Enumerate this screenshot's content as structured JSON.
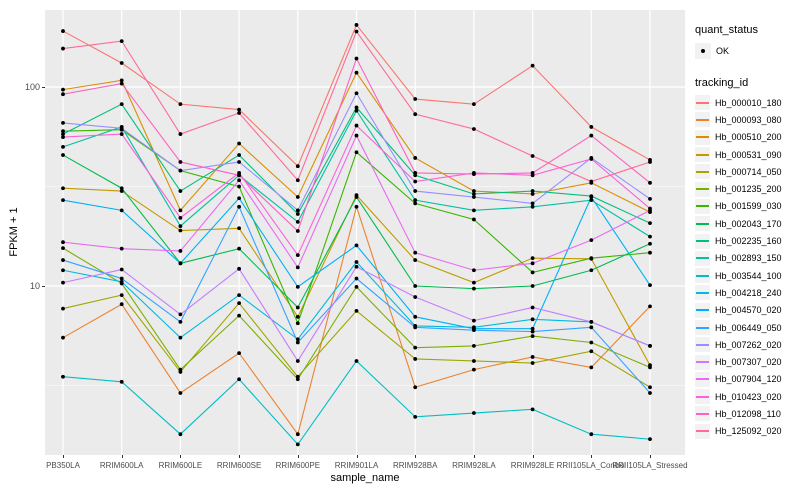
{
  "theme": {
    "panel_bg": "#EBEBEB",
    "grid_major": "#FFFFFF",
    "grid_minor": "#FFFFFF",
    "tick_text": "#4D4D4D",
    "title_text": "#000000",
    "legend_key_bg": "#F2F2F2",
    "point_color": "#000000"
  },
  "legend": {
    "quant_status_title": "quant_status",
    "quant_status_items": [
      {
        "label": "OK",
        "marker": "point"
      }
    ],
    "tracking_title": "tracking_id"
  },
  "chart_data": {
    "type": "line",
    "title": "",
    "xlabel": "sample_name",
    "ylabel": "FPKM + 1",
    "y_scale": "log10",
    "y_ticks": [
      10,
      100
    ],
    "ylim": [
      1.42,
      243
    ],
    "grid": "on",
    "legend_position": "right",
    "categories": [
      "PB350LA",
      "RRIM600LA",
      "RRIM600LE",
      "RRIM600SE",
      "RRIM600PE",
      "RRIM901LA",
      "RRIM928BA",
      "RRIM928LA",
      "RRIM928LE",
      "RRII105LA_Control",
      "RRII105LA_Stressed"
    ],
    "series": [
      {
        "name": "Hb_000010_180",
        "color": "#F8766D",
        "values": [
          191,
          132,
          82,
          77,
          40,
          205,
          87,
          82,
          128,
          63,
          43
        ]
      },
      {
        "name": "Hb_000093_080",
        "color": "#EA8331",
        "values": [
          5.5,
          8.1,
          2.9,
          4.6,
          1.8,
          25,
          3.1,
          3.8,
          4.4,
          3.9,
          7.9
        ]
      },
      {
        "name": "Hb_000510_200",
        "color": "#D89000",
        "values": [
          97,
          108,
          24,
          52,
          28,
          118,
          44,
          30,
          29,
          33,
          23.5
        ]
      },
      {
        "name": "Hb_000531_090",
        "color": "#C09B00",
        "values": [
          31,
          30,
          19,
          19.5,
          7,
          28.6,
          13.5,
          10.4,
          13.8,
          13.7,
          4
        ]
      },
      {
        "name": "Hb_000714_050",
        "color": "#A3A500",
        "values": [
          7.7,
          9,
          3.7,
          8.2,
          3.5,
          7.5,
          4.3,
          4.2,
          4.1,
          4.7,
          3.1
        ]
      },
      {
        "name": "Hb_001235_200",
        "color": "#7CAE00",
        "values": [
          15.5,
          10.3,
          3.8,
          7.1,
          3.4,
          9.9,
          4.9,
          5,
          5.6,
          5.2,
          3.9
        ]
      },
      {
        "name": "Hb_001599_030",
        "color": "#39B600",
        "values": [
          60,
          61,
          38,
          31.6,
          6.5,
          47,
          26,
          21.6,
          11.7,
          13.8,
          14.7
        ]
      },
      {
        "name": "Hb_002043_170",
        "color": "#00BB4E",
        "values": [
          45.5,
          31,
          13,
          15.4,
          7.8,
          28,
          10,
          9.7,
          10,
          12,
          16.3
        ]
      },
      {
        "name": "Hb_002235_160",
        "color": "#00BF7D",
        "values": [
          58,
          82,
          30,
          45.5,
          23,
          79,
          36,
          29,
          30,
          28.3,
          20.7
        ]
      },
      {
        "name": "Hb_002893_150",
        "color": "#00C1A3",
        "values": [
          50,
          63,
          20,
          36,
          21,
          76,
          27,
          24,
          25,
          27,
          17.7
        ]
      },
      {
        "name": "Hb_003544_100",
        "color": "#00BFC4",
        "values": [
          3.5,
          3.3,
          1.8,
          3.4,
          1.6,
          4.2,
          2.2,
          2.3,
          2.4,
          1.8,
          1.7
        ]
      },
      {
        "name": "Hb_004218_240",
        "color": "#00BAE0",
        "values": [
          12,
          10.5,
          5.5,
          9,
          5.4,
          13.2,
          6.3,
          6.2,
          6.8,
          6.6,
          5
        ]
      },
      {
        "name": "Hb_004570_020",
        "color": "#00B0F6",
        "values": [
          27,
          24,
          13,
          27.6,
          9.9,
          16,
          7,
          6.1,
          6.1,
          28,
          10.1
        ]
      },
      {
        "name": "Hb_006449_050",
        "color": "#35A2FF",
        "values": [
          13.5,
          10.9,
          6.6,
          25,
          5.2,
          10.9,
          6.2,
          6,
          5.9,
          6.2,
          2.9
        ]
      },
      {
        "name": "Hb_007262_020",
        "color": "#9590FF",
        "values": [
          66,
          62,
          38,
          42,
          24,
          93,
          30,
          28,
          26,
          44,
          27.4
        ]
      },
      {
        "name": "Hb_007307_020",
        "color": "#C77CFF",
        "values": [
          10.4,
          12.1,
          7.2,
          12.2,
          4.2,
          12.5,
          8.8,
          6.7,
          7.8,
          6.6,
          5
        ]
      },
      {
        "name": "Hb_007904_120",
        "color": "#E76BF3",
        "values": [
          16.6,
          15.4,
          15,
          34,
          12.4,
          57,
          14.7,
          12,
          13,
          17,
          24
        ]
      },
      {
        "name": "Hb_010423_020",
        "color": "#FA62DB",
        "values": [
          56,
          58,
          22,
          37,
          14.3,
          64,
          33.5,
          37,
          36,
          43.5,
          24.5
        ]
      },
      {
        "name": "Hb_012098_110",
        "color": "#FF61C3",
        "values": [
          92,
          104,
          42,
          36,
          18.9,
          139,
          37,
          36.5,
          37,
          57,
          33
        ]
      },
      {
        "name": "Hb_125092_020",
        "color": "#FF6A98",
        "values": [
          156,
          170,
          58,
          74,
          34,
          190,
          73,
          61.5,
          45,
          33.5,
          42
        ]
      }
    ]
  }
}
